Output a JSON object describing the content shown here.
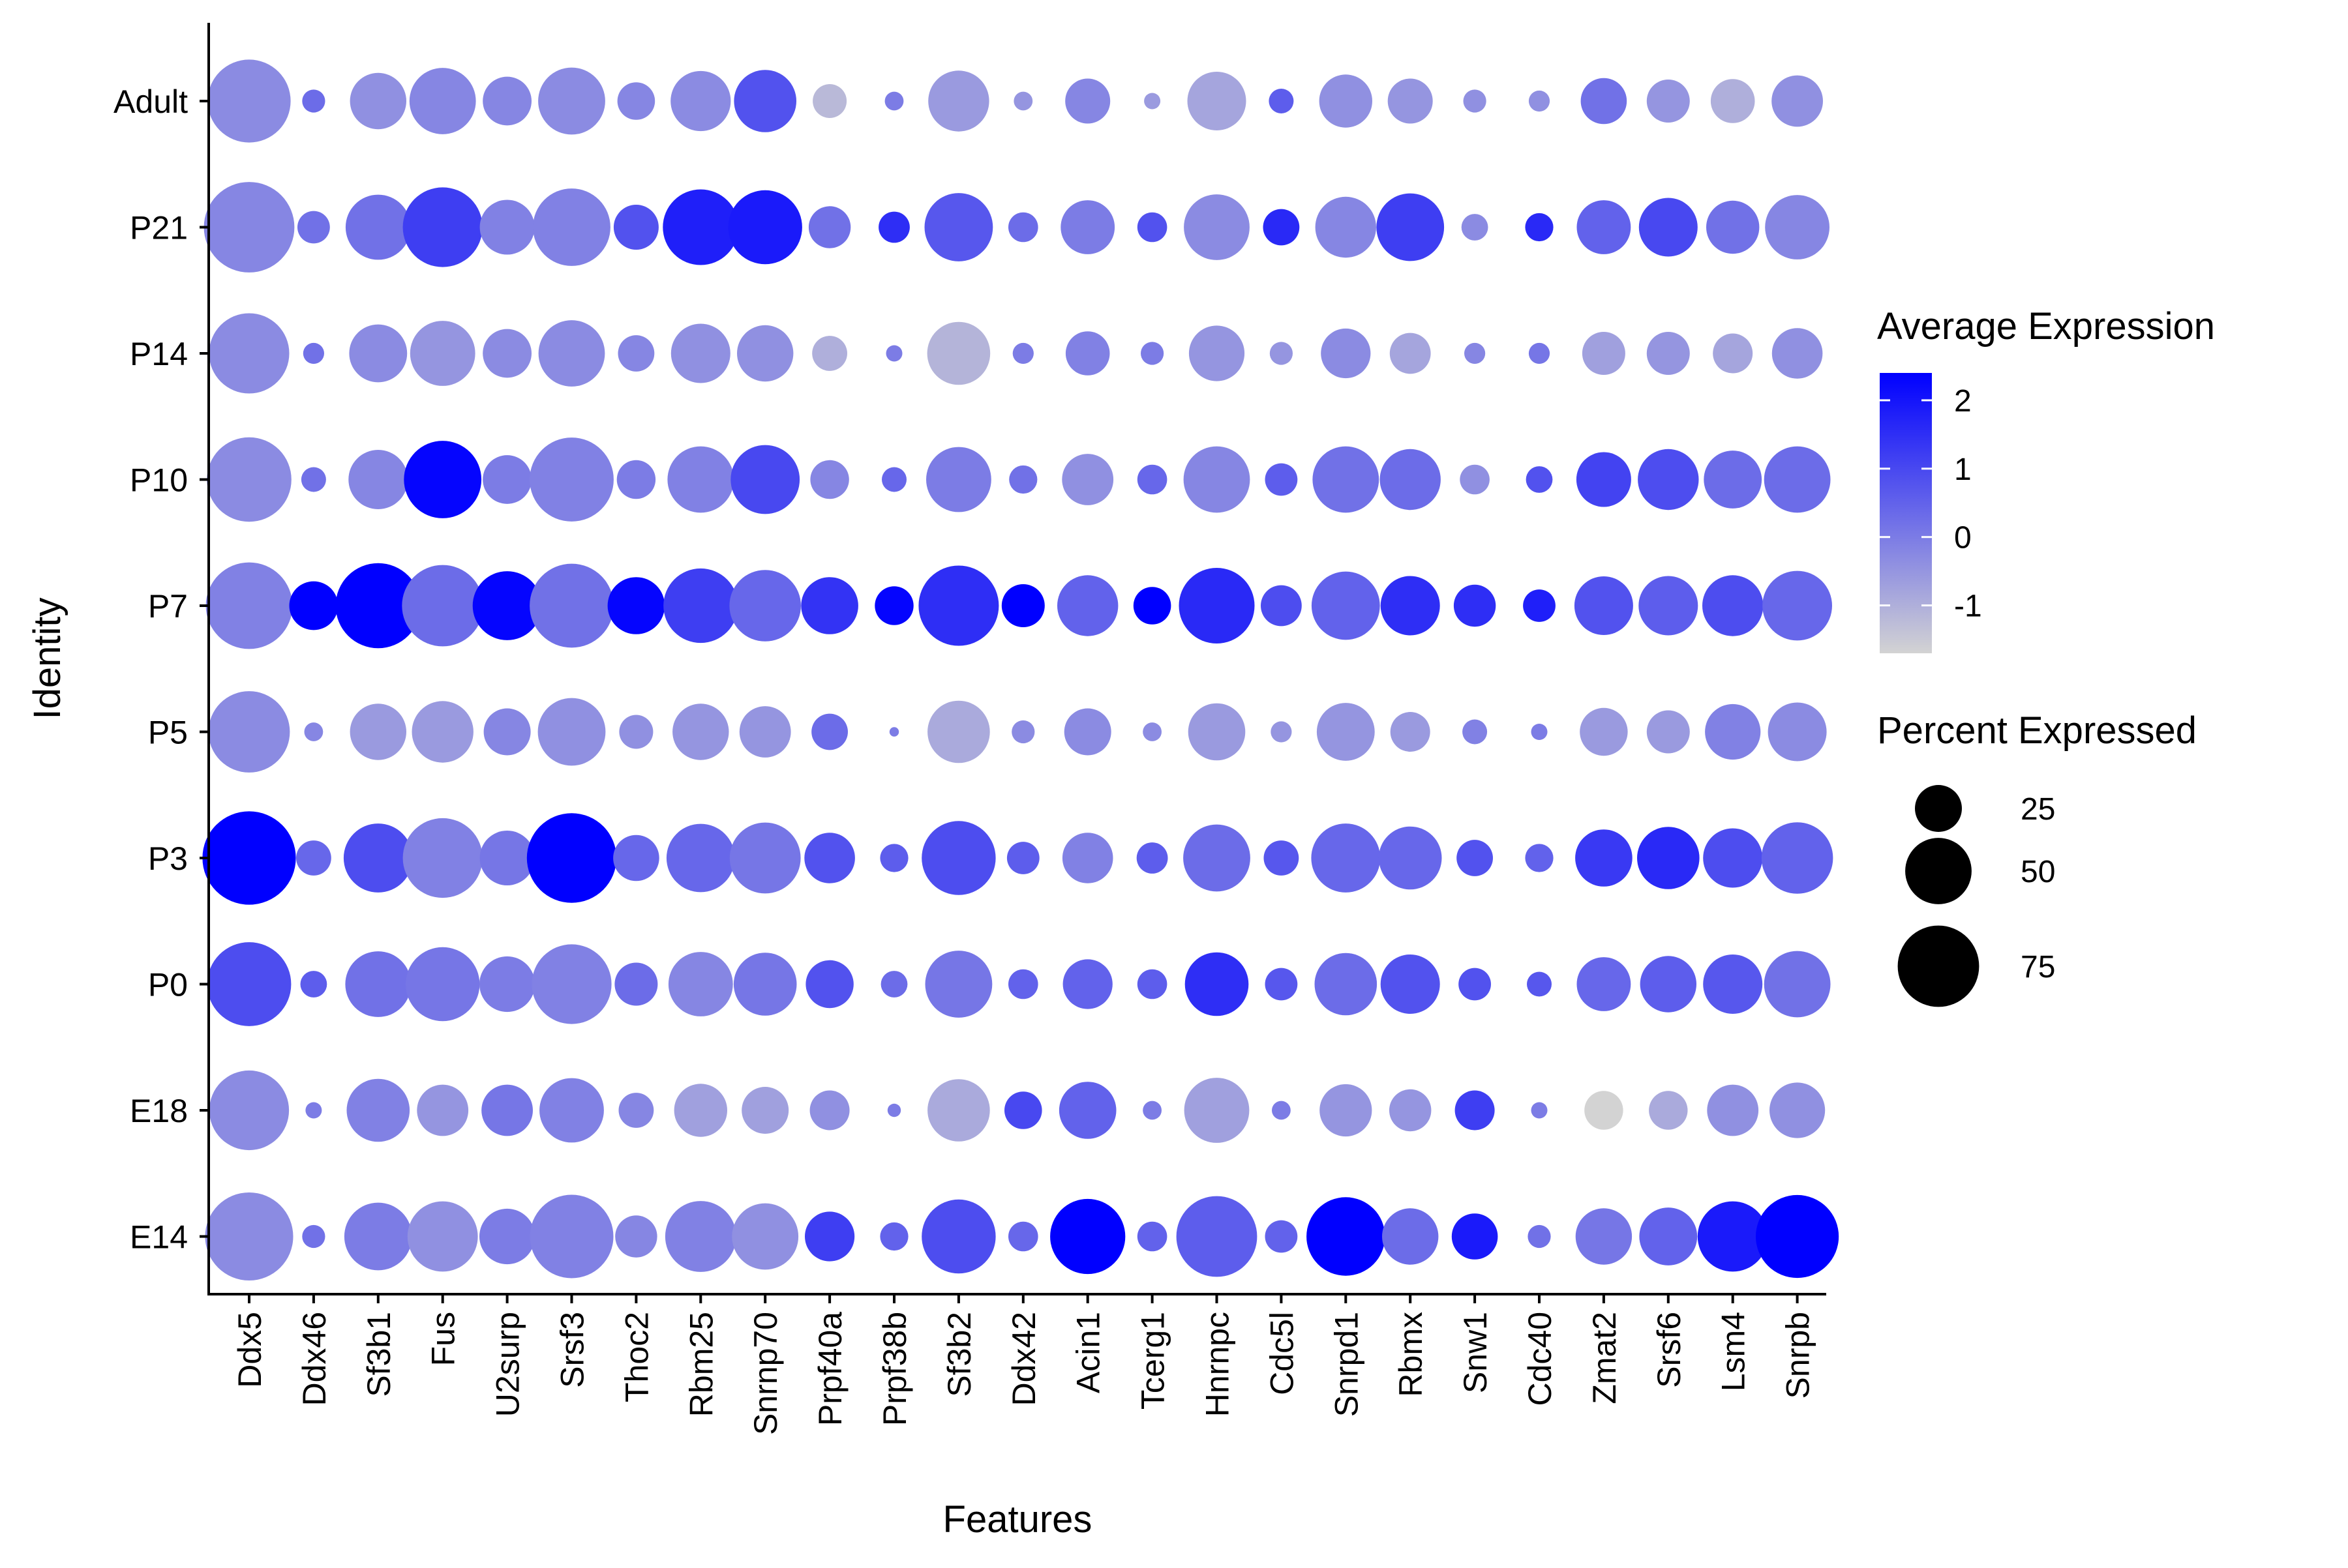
{
  "chart_data": {
    "type": "dotplot",
    "xlabel": "Features",
    "ylabel": "Identity",
    "features": [
      "Ddx5",
      "Ddx46",
      "Sf3b1",
      "Fus",
      "U2surp",
      "Srsf3",
      "Thoc2",
      "Rbm25",
      "Snrnp70",
      "Prpf40a",
      "Prpf38b",
      "Sf3b2",
      "Ddx42",
      "Acin1",
      "Tcerg1",
      "Hnrnpc",
      "Cdc5l",
      "Snrpd1",
      "Rbmx",
      "Snw1",
      "Cdc40",
      "Zmat2",
      "Srsf6",
      "Lsm4",
      "Snrpb"
    ],
    "identities": [
      "Adult",
      "P21",
      "P14",
      "P10",
      "P7",
      "P5",
      "P3",
      "P0",
      "E18",
      "E14"
    ],
    "color_legend": {
      "title": "Average Expression",
      "ticks": [
        "2",
        "1",
        "0",
        "-1"
      ],
      "tick_values": [
        2,
        1,
        0,
        -1
      ],
      "range": [
        -1.7,
        2.4
      ],
      "low_color": "#d3d3d3",
      "high_color": "#0000ff"
    },
    "size_legend": {
      "title": "Percent Expressed",
      "ticks": [
        "25",
        "50",
        "75"
      ],
      "tick_values": [
        25,
        50,
        75
      ],
      "max_percent": 100
    },
    "rows": [
      {
        "identity": "Adult",
        "pct": [
          78,
          6,
          36,
          50,
          27,
          51,
          16,
          41,
          44,
          13,
          4,
          42,
          4,
          23,
          3,
          39,
          7,
          32,
          23,
          6,
          5,
          24,
          21,
          22,
          30
        ],
        "avg": [
          -0.3,
          0.3,
          -0.4,
          -0.2,
          -0.2,
          -0.3,
          -0.2,
          -0.3,
          0.8,
          -1.2,
          0,
          -0.6,
          -0.5,
          -0.2,
          -0.6,
          -0.8,
          0.6,
          -0.4,
          -0.5,
          -0.4,
          -0.4,
          0.2,
          -0.5,
          -1.0,
          -0.4
        ]
      },
      {
        "identity": "P21",
        "pct": [
          93,
          12,
          48,
          72,
          34,
          68,
          23,
          65,
          62,
          20,
          11,
          53,
          10,
          33,
          10,
          49,
          15,
          42,
          52,
          8,
          9,
          33,
          39,
          32,
          47
        ],
        "avg": [
          -0.2,
          0.2,
          0.2,
          1.2,
          -0.1,
          -0.1,
          0.8,
          1.8,
          1.9,
          0.2,
          1.5,
          0.7,
          0.3,
          0,
          0.8,
          -0.3,
          1.6,
          -0.2,
          1.2,
          -0.3,
          1.6,
          0.5,
          1.0,
          0.2,
          -0.2
        ]
      },
      {
        "identity": "P14",
        "pct": [
          73,
          5,
          38,
          48,
          27,
          50,
          15,
          40,
          36,
          14,
          3,
          45,
          5,
          22,
          6,
          35,
          6,
          28,
          19,
          5,
          5,
          21,
          21,
          18,
          29
        ],
        "avg": [
          -0.3,
          0.2,
          -0.3,
          -0.5,
          -0.3,
          -0.3,
          -0.2,
          -0.4,
          -0.4,
          -1.0,
          0,
          -1.1,
          0,
          -0.1,
          0,
          -0.5,
          -0.5,
          -0.3,
          -0.8,
          -0.2,
          0.1,
          -0.7,
          -0.5,
          -0.8,
          -0.4
        ]
      },
      {
        "identity": "P10",
        "pct": [
          81,
          7,
          40,
          68,
          27,
          80,
          17,
          50,
          54,
          17,
          7,
          48,
          9,
          30,
          10,
          50,
          12,
          50,
          42,
          10,
          8,
          34,
          42,
          38,
          50
        ],
        "avg": [
          -0.3,
          0.2,
          -0.2,
          2.3,
          0,
          -0.1,
          0,
          -0.1,
          1.0,
          -0.2,
          0.4,
          0,
          0.2,
          -0.4,
          0.4,
          -0.2,
          0.6,
          0.2,
          0.3,
          -0.4,
          0.8,
          1.1,
          0.9,
          0.3,
          0.3
        ]
      },
      {
        "identity": "P7",
        "pct": [
          85,
          27,
          82,
          75,
          54,
          80,
          37,
          63,
          58,
          37,
          17,
          73,
          21,
          42,
          16,
          65,
          19,
          53,
          40,
          20,
          12,
          39,
          40,
          42,
          55
        ],
        "avg": [
          -0.1,
          2.4,
          2.4,
          0.3,
          2.3,
          0.2,
          2.3,
          1.2,
          0.4,
          1.4,
          2.3,
          1.5,
          2.4,
          0.5,
          2.4,
          1.6,
          0.9,
          0.5,
          1.5,
          1.5,
          1.8,
          0.8,
          0.6,
          0.9,
          0.4
        ]
      },
      {
        "identity": "P5",
        "pct": [
          75,
          4,
          36,
          43,
          25,
          52,
          13,
          36,
          30,
          15,
          1,
          44,
          6,
          25,
          4,
          37,
          5,
          38,
          18,
          7,
          3,
          26,
          21,
          35,
          39
        ],
        "avg": [
          -0.3,
          -0.2,
          -0.6,
          -0.6,
          -0.2,
          -0.4,
          -0.4,
          -0.5,
          -0.5,
          0.3,
          0,
          -0.9,
          -0.3,
          -0.3,
          -0.3,
          -0.6,
          -0.5,
          -0.5,
          -0.6,
          -0.1,
          0,
          -0.6,
          -0.6,
          -0.1,
          -0.3
        ]
      },
      {
        "identity": "P3",
        "pct": [
          99,
          14,
          54,
          72,
          34,
          91,
          24,
          53,
          57,
          29,
          9,
          62,
          12,
          29,
          11,
          51,
          14,
          54,
          45,
          15,
          9,
          37,
          44,
          40,
          58
        ],
        "avg": [
          2.4,
          0.4,
          0.9,
          -0.1,
          0.1,
          2.4,
          0.4,
          0.4,
          0.1,
          0.8,
          0.6,
          0.9,
          0.6,
          -0.1,
          0.6,
          0.3,
          0.7,
          0.4,
          0.4,
          0.8,
          0.5,
          1.3,
          1.6,
          0.9,
          0.5
        ]
      },
      {
        "identity": "P0",
        "pct": [
          80,
          8,
          49,
          62,
          35,
          72,
          21,
          47,
          45,
          26,
          8,
          51,
          10,
          28,
          10,
          46,
          12,
          44,
          40,
          12,
          7,
          33,
          36,
          40,
          50
        ],
        "avg": [
          0.9,
          0.6,
          0.2,
          0.1,
          0,
          -0.1,
          0.3,
          -0.2,
          0.1,
          0.8,
          0.3,
          0.1,
          0.5,
          0.5,
          0.6,
          1.5,
          0.7,
          0.3,
          0.8,
          0.8,
          0.7,
          0.4,
          0.6,
          0.7,
          0.2
        ]
      },
      {
        "identity": "E18",
        "pct": [
          72,
          3,
          45,
          30,
          30,
          47,
          14,
          32,
          25,
          18,
          2,
          44,
          16,
          37,
          4,
          48,
          4,
          31,
          20,
          18,
          3,
          17,
          17,
          30,
          35
        ],
        "avg": [
          -0.3,
          0,
          -0.1,
          -0.5,
          0.1,
          -0.1,
          -0.2,
          -0.7,
          -0.7,
          -0.4,
          0,
          -0.9,
          1.0,
          0.5,
          0,
          -0.7,
          0,
          -0.5,
          -0.5,
          1.2,
          0,
          -1.7,
          -0.9,
          -0.4,
          -0.4
        ]
      },
      {
        "identity": "E14",
        "pct": [
          88,
          6,
          52,
          56,
          35,
          79,
          20,
          57,
          50,
          28,
          9,
          62,
          10,
          64,
          10,
          74,
          12,
          70,
          36,
          24,
          6,
          36,
          38,
          56,
          78
        ],
        "avg": [
          -0.3,
          0.2,
          0,
          -0.4,
          0,
          -0.1,
          -0.2,
          -0.1,
          -0.4,
          1.2,
          0.5,
          0.9,
          0.4,
          2.4,
          0.5,
          0.6,
          0.5,
          2.4,
          0.3,
          1.9,
          0.2,
          0.1,
          0.5,
          1.9,
          2.4
        ]
      }
    ]
  }
}
